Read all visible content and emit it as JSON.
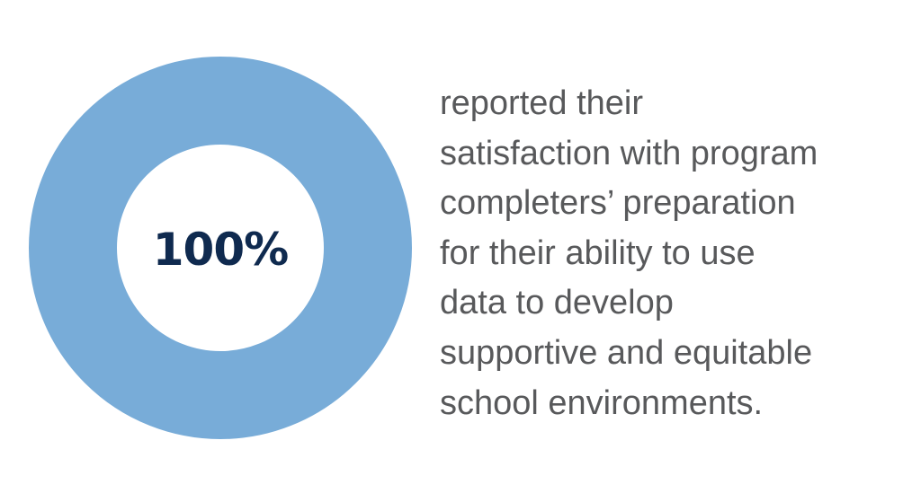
{
  "chart_data": {
    "type": "pie",
    "categories": [
      ""
    ],
    "values": [
      100
    ],
    "center_label": "100%",
    "donut": true,
    "colors": {
      "ring": "#78acd8",
      "center_text": "#0f2a4f",
      "caption_text": "#58595b"
    }
  },
  "caption": {
    "lines": [
      "reported their",
      "satisfaction with program",
      "completers’ preparation",
      "for their ability to use",
      "data to develop",
      "supportive and equitable",
      "school environments."
    ]
  }
}
